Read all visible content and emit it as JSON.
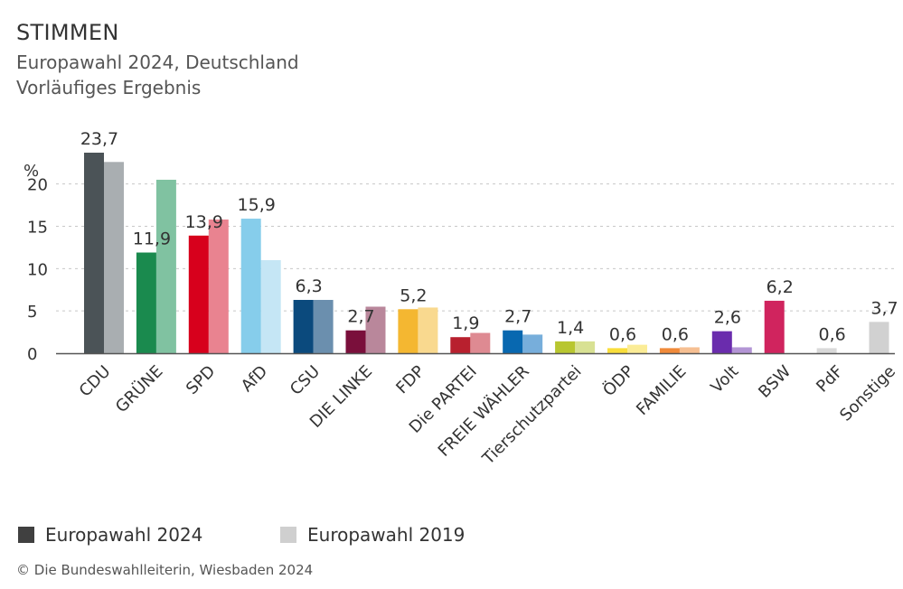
{
  "header": {
    "title": "STIMMEN",
    "subtitle_1": "Europawahl 2024, Deutschland",
    "subtitle_2": "Vorläufiges Ergebnis"
  },
  "legend": {
    "current": {
      "label": "Europawahl 2024",
      "color": "#404040"
    },
    "previous": {
      "label": "Europawahl 2019",
      "color": "#cfcfcf"
    }
  },
  "source": "© Die Bundeswahlleiterin, Wiesbaden 2024",
  "chart_data": {
    "type": "bar",
    "title": "STIMMEN",
    "ylabel": "%",
    "ylim": [
      0,
      23.7
    ],
    "yticks": [
      0,
      5,
      10,
      15,
      20
    ],
    "grid": true,
    "legend_position": "bottom-left",
    "categories": [
      "CDU",
      "GRÜNE",
      "SPD",
      "AfD",
      "CSU",
      "DIE LINKE",
      "FDP",
      "Die PARTEI",
      "FREIE WÄHLER",
      "Tierschutzpartei",
      "ÖDP",
      "FAMILIE",
      "Volt",
      "BSW",
      "PdF",
      "Sonstige"
    ],
    "series": [
      {
        "name": "Europawahl 2024",
        "values": [
          23.7,
          11.9,
          13.9,
          15.9,
          6.3,
          2.7,
          5.2,
          1.9,
          2.7,
          1.4,
          0.6,
          0.6,
          2.6,
          6.2,
          0.6,
          3.7
        ],
        "labels": [
          "23,7",
          "11,9",
          "13,9",
          "15,9",
          "6,3",
          "2,7",
          "5,2",
          "1,9",
          "2,7",
          "1,4",
          "0,6",
          "0,6",
          "2,6",
          "6,2",
          "0,6",
          "3,7"
        ]
      },
      {
        "name": "Europawahl 2019",
        "values": [
          22.6,
          20.5,
          15.8,
          11.0,
          6.3,
          5.5,
          5.4,
          2.4,
          2.2,
          1.4,
          1.0,
          0.7,
          0.7,
          null,
          null,
          null
        ]
      }
    ],
    "colors_current": [
      "#4b5357",
      "#1a8a4e",
      "#d7001c",
      "#86cdeb",
      "#0b4a7d",
      "#7a0f3b",
      "#f4b731",
      "#b8202e",
      "#0868b0",
      "#b8c630",
      "#f9de3b",
      "#f08a3a",
      "#6a2cad",
      "#d0245e",
      "#d9d9d9",
      "#d1d1d1"
    ],
    "colors_previous": [
      "#a9aeb1",
      "#80c2a1",
      "#e98390",
      "#c5e6f5",
      "#6b8fae",
      "#b9879b",
      "#f9d98f",
      "#de8a92",
      "#77aedb",
      "#d8e193",
      "#fbec96",
      "#f6bf92",
      "#b395d5",
      null,
      null,
      null
    ]
  }
}
